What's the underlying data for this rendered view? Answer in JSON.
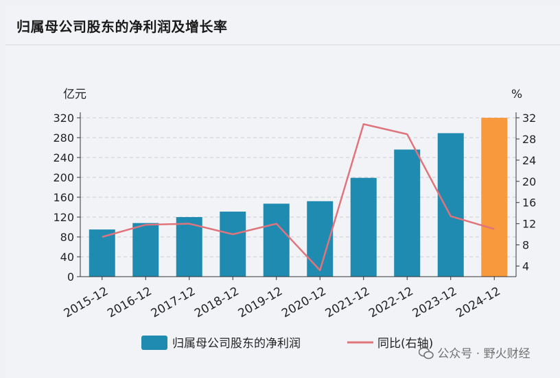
{
  "title": "归属母公司股东的净利润及增长率",
  "watermark": {
    "text": "公众号 · 野火财经",
    "icon": "wechat-icon"
  },
  "colors": {
    "bar": "#1f8bb0",
    "bar_highlight": "#f7993c",
    "line": "#e0747c",
    "axis": "#333333",
    "grid": "#c9ccd4"
  },
  "chart_data": {
    "type": "bar",
    "categories": [
      "2015-12",
      "2016-12",
      "2017-12",
      "2018-12",
      "2019-12",
      "2020-12",
      "2021-12",
      "2022-12",
      "2023-12",
      "2024-12"
    ],
    "y_left_unit": "亿元",
    "y_right_unit": "%",
    "y_left_ticks": [
      0,
      40,
      80,
      120,
      160,
      200,
      240,
      280,
      320
    ],
    "y_right_ticks": [
      4,
      8,
      12,
      16,
      20,
      24,
      28,
      32
    ],
    "ylim_left": [
      0,
      320
    ],
    "ylim_right": [
      2,
      32
    ],
    "grid": true,
    "legend_position": "bottom",
    "series": [
      {
        "name": "归属母公司股东的净利润",
        "type": "bar",
        "axis": "left",
        "values": [
          95,
          108,
          120,
          131,
          147,
          152,
          199,
          256,
          289,
          320
        ]
      },
      {
        "name": "同比(右轴)",
        "type": "line",
        "axis": "right",
        "values": [
          9.5,
          11.8,
          12.0,
          10.0,
          12.0,
          3.2,
          30.8,
          28.9,
          13.4,
          11.0
        ]
      }
    ]
  }
}
